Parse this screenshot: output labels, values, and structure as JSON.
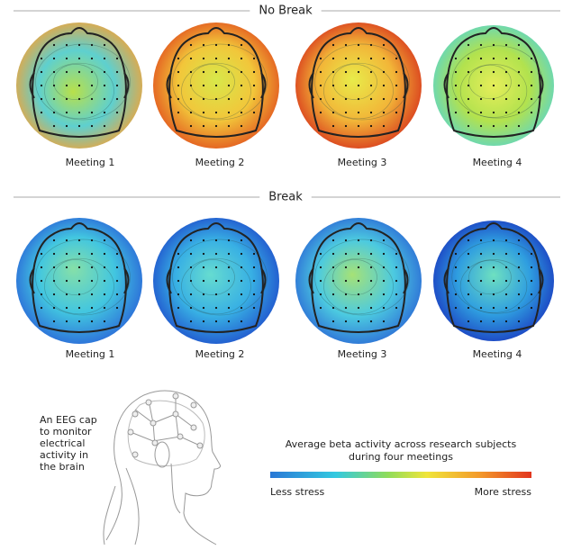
{
  "sections": [
    {
      "title": "No Break",
      "maps": [
        {
          "label": "Meeting 1"
        },
        {
          "label": "Meeting 2"
        },
        {
          "label": "Meeting 3"
        },
        {
          "label": "Meeting 4"
        }
      ]
    },
    {
      "title": "Break",
      "maps": [
        {
          "label": "Meeting 1"
        },
        {
          "label": "Meeting 2"
        },
        {
          "label": "Meeting 3"
        },
        {
          "label": "Meeting 4"
        }
      ]
    }
  ],
  "caption": {
    "lines": [
      "An EEG cap",
      "to monitor",
      "electrical",
      "activity in",
      "the brain"
    ]
  },
  "legend": {
    "title_lines": [
      "Average beta activity across research subjects",
      "during four meetings"
    ],
    "low": "Less stress",
    "high": "More stress"
  }
}
